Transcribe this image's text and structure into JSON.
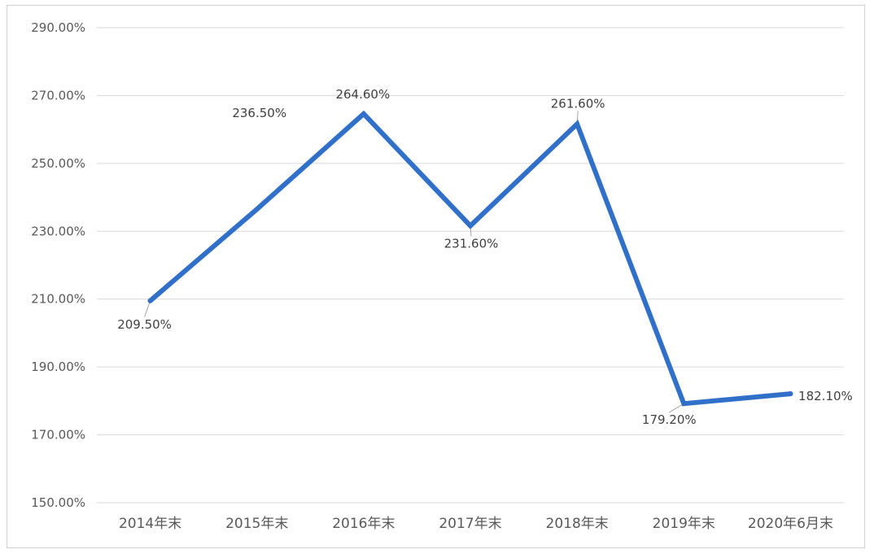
{
  "chart_data": {
    "type": "line",
    "categories": [
      "2014年末",
      "2015年末",
      "2016年末",
      "2017年末",
      "2018年末",
      "2019年末",
      "2020年6月末"
    ],
    "series": [
      {
        "values": [
          209.5,
          236.5,
          264.6,
          231.6,
          261.6,
          179.2,
          182.1
        ],
        "labels": [
          "209.50%",
          "236.50%",
          "264.60%",
          "231.60%",
          "261.60%",
          "179.20%",
          "182.10%"
        ],
        "color": "#3070c8"
      }
    ],
    "yticks": [
      150,
      170,
      190,
      210,
      230,
      250,
      270,
      290
    ],
    "ytick_labels": [
      "150.00%",
      "170.00%",
      "190.00%",
      "210.00%",
      "230.00%",
      "250.00%",
      "270.00%",
      "290.00%"
    ],
    "ylim": [
      150,
      290
    ],
    "grid": true,
    "legend": "none"
  }
}
